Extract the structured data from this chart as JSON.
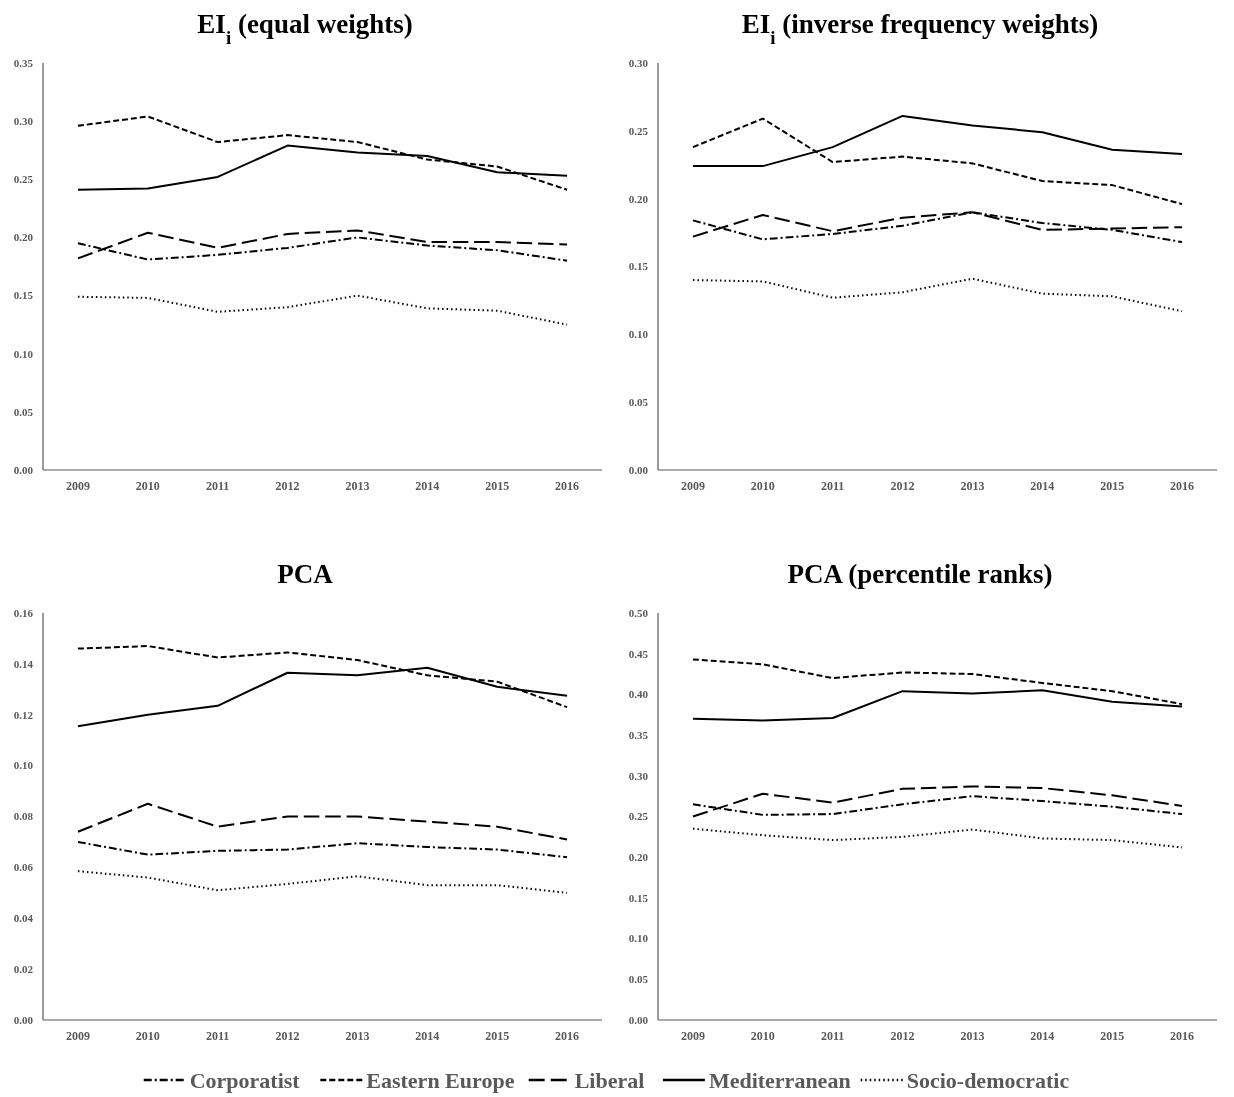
{
  "chart_data": [
    {
      "type": "line",
      "title": "EI$_{i}$ (equal weights)",
      "categories": [
        "2009",
        "2010",
        "2011",
        "2012",
        "2013",
        "2014",
        "2015",
        "2016"
      ],
      "ylim": [
        0,
        0.35
      ],
      "yticks": [
        {
          "value": 0,
          "label": "0.00"
        },
        {
          "value": 0.05,
          "label": "0.05"
        },
        {
          "value": 0.1,
          "label": "0.10"
        },
        {
          "value": 0.15,
          "label": "0.15"
        },
        {
          "value": 0.2,
          "label": "0.20"
        },
        {
          "value": 0.25,
          "label": "0.25"
        },
        {
          "value": 0.3,
          "label": "0.30"
        },
        {
          "value": 0.35,
          "label": "0.35"
        }
      ],
      "grid": false,
      "marker": "none",
      "series": [
        {
          "color": "#000000",
          "line_style": "dashdot",
          "values": [
            0.195,
            0.181,
            0.185,
            0.191,
            0.2,
            0.193,
            0.189,
            0.18
          ]
        },
        {
          "color": "#000000",
          "line_style": "dashed",
          "values": [
            0.296,
            0.304,
            0.282,
            0.288,
            0.282,
            0.267,
            0.261,
            0.241
          ]
        },
        {
          "color": "#000000",
          "line_style": "longdash",
          "values": [
            0.182,
            0.204,
            0.191,
            0.203,
            0.206,
            0.196,
            0.196,
            0.194
          ]
        },
        {
          "color": "#000000",
          "line_style": "solid",
          "values": [
            0.241,
            0.242,
            0.252,
            0.279,
            0.273,
            0.27,
            0.256,
            0.253
          ]
        },
        {
          "color": "#000000",
          "line_style": "dotted",
          "values": [
            0.149,
            0.148,
            0.136,
            0.14,
            0.15,
            0.139,
            0.137,
            0.125
          ]
        }
      ]
    },
    {
      "type": "line",
      "title": "EI$_{i}$ (inverse frequency weights)",
      "categories": [
        "2009",
        "2010",
        "2011",
        "2012",
        "2013",
        "2014",
        "2015",
        "2016"
      ],
      "ylim": [
        0,
        0.3
      ],
      "yticks": [
        {
          "value": 0,
          "label": "0.00"
        },
        {
          "value": 0.05,
          "label": "0.05"
        },
        {
          "value": 0.1,
          "label": "0.10"
        },
        {
          "value": 0.15,
          "label": "0.15"
        },
        {
          "value": 0.2,
          "label": "0.20"
        },
        {
          "value": 0.25,
          "label": "0.25"
        },
        {
          "value": 0.3,
          "label": "0.30"
        }
      ],
      "grid": false,
      "marker": "none",
      "series": [
        {
          "color": "#000000",
          "line_style": "dashdot",
          "values": [
            0.184,
            0.17,
            0.174,
            0.18,
            0.19,
            0.182,
            0.177,
            0.168
          ]
        },
        {
          "color": "#000000",
          "line_style": "dashed",
          "values": [
            0.238,
            0.259,
            0.227,
            0.231,
            0.226,
            0.213,
            0.21,
            0.196
          ]
        },
        {
          "color": "#000000",
          "line_style": "longdash",
          "values": [
            0.172,
            0.188,
            0.176,
            0.186,
            0.19,
            0.177,
            0.178,
            0.179
          ]
        },
        {
          "color": "#000000",
          "line_style": "solid",
          "values": [
            0.224,
            0.224,
            0.238,
            0.261,
            0.254,
            0.249,
            0.236,
            0.233
          ]
        },
        {
          "color": "#000000",
          "line_style": "dotted",
          "values": [
            0.14,
            0.139,
            0.127,
            0.131,
            0.141,
            0.13,
            0.128,
            0.117
          ]
        }
      ]
    },
    {
      "type": "line",
      "title": "PCA",
      "categories": [
        "2009",
        "2010",
        "2011",
        "2012",
        "2013",
        "2014",
        "2015",
        "2016"
      ],
      "ylim": [
        0,
        0.16
      ],
      "yticks": [
        {
          "value": 0,
          "label": "0.00"
        },
        {
          "value": 0.02,
          "label": "0.02"
        },
        {
          "value": 0.04,
          "label": "0.04"
        },
        {
          "value": 0.06,
          "label": "0.06"
        },
        {
          "value": 0.08,
          "label": "0.08"
        },
        {
          "value": 0.1,
          "label": "0.10"
        },
        {
          "value": 0.12,
          "label": "0.12"
        },
        {
          "value": 0.14,
          "label": "0.14"
        },
        {
          "value": 0.16,
          "label": "0.16"
        }
      ],
      "grid": false,
      "marker": "none",
      "series": [
        {
          "color": "#000000",
          "line_style": "dashdot",
          "values": [
            0.07,
            0.065,
            0.0665,
            0.067,
            0.0695,
            0.068,
            0.067,
            0.064
          ]
        },
        {
          "color": "#000000",
          "line_style": "dashed",
          "values": [
            0.146,
            0.147,
            0.1425,
            0.1445,
            0.1415,
            0.1355,
            0.133,
            0.123
          ]
        },
        {
          "color": "#000000",
          "line_style": "longdash",
          "values": [
            0.074,
            0.085,
            0.076,
            0.08,
            0.08,
            0.078,
            0.076,
            0.071
          ]
        },
        {
          "color": "#000000",
          "line_style": "solid",
          "values": [
            0.1155,
            0.12,
            0.1235,
            0.1365,
            0.1355,
            0.1385,
            0.131,
            0.1275
          ]
        },
        {
          "color": "#000000",
          "line_style": "dotted",
          "values": [
            0.0585,
            0.056,
            0.051,
            0.0535,
            0.0565,
            0.053,
            0.053,
            0.05
          ]
        }
      ]
    },
    {
      "type": "line",
      "title": "PCA (percentile ranks)",
      "categories": [
        "2009",
        "2010",
        "2011",
        "2012",
        "2013",
        "2014",
        "2015",
        "2016"
      ],
      "ylim": [
        0,
        0.5
      ],
      "yticks": [
        {
          "value": 0,
          "label": "0.00"
        },
        {
          "value": 0.05,
          "label": "0.05"
        },
        {
          "value": 0.1,
          "label": "0.10"
        },
        {
          "value": 0.15,
          "label": "0.15"
        },
        {
          "value": 0.2,
          "label": "0.20"
        },
        {
          "value": 0.25,
          "label": "0.25"
        },
        {
          "value": 0.3,
          "label": "0.30"
        },
        {
          "value": 0.35,
          "label": "0.35"
        },
        {
          "value": 0.4,
          "label": "0.40"
        },
        {
          "value": 0.45,
          "label": "0.45"
        },
        {
          "value": 0.5,
          "label": "0.50"
        }
      ],
      "grid": false,
      "marker": "none",
      "legend": "bottom",
      "series": [
        {
          "name": "Corporatist",
          "color": "#000000",
          "line_style": "dashdot",
          "values": [
            0.265,
            0.252,
            0.253,
            0.265,
            0.275,
            0.269,
            0.262,
            0.253
          ]
        },
        {
          "name": "Eastern Europe",
          "color": "#000000",
          "line_style": "dashed",
          "values": [
            0.443,
            0.437,
            0.42,
            0.427,
            0.425,
            0.414,
            0.404,
            0.388
          ]
        },
        {
          "name": "Liberal",
          "color": "#000000",
          "line_style": "longdash",
          "values": [
            0.25,
            0.278,
            0.267,
            0.284,
            0.287,
            0.285,
            0.276,
            0.263
          ]
        },
        {
          "name": "Mediterranean",
          "color": "#000000",
          "line_style": "solid",
          "values": [
            0.37,
            0.368,
            0.371,
            0.404,
            0.401,
            0.405,
            0.391,
            0.385
          ]
        },
        {
          "name": "Socio-democratic",
          "color": "#000000",
          "line_style": "dotted",
          "values": [
            0.235,
            0.227,
            0.221,
            0.225,
            0.234,
            0.223,
            0.221,
            0.212
          ]
        }
      ]
    }
  ]
}
